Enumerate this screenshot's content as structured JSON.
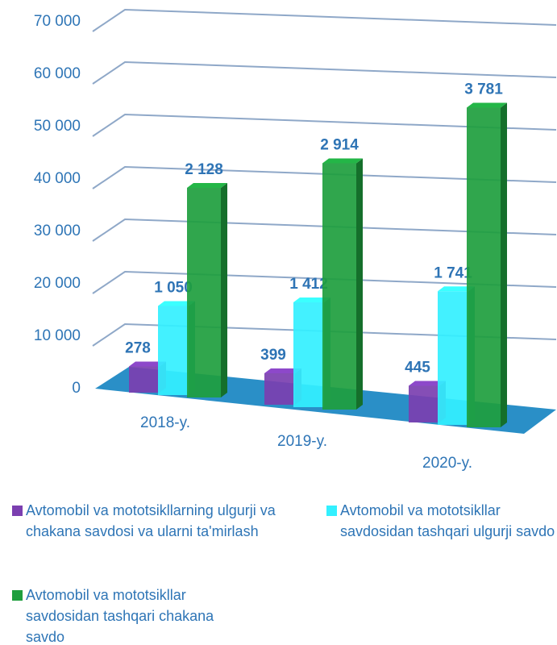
{
  "chart_data": {
    "type": "bar3d",
    "categories": [
      "2018-y.",
      "2019-y.",
      "2020-y."
    ],
    "series": [
      {
        "name": "Avtomobil va mototsikllarning ulgurji va chakana savdosi va ularni ta'mirlash",
        "color": "#7b3fb0",
        "values": [
          5000,
          6000,
          7000
        ],
        "labels": [
          "278",
          "399",
          "445"
        ]
      },
      {
        "name": "Avtomobil va mototsikllar savdosidan tashqari ulgurji savdo",
        "color": "#33f0ff",
        "values": [
          17000,
          20000,
          25500
        ],
        "labels": [
          "1 050",
          "1 412",
          "1 741"
        ]
      },
      {
        "name": "Avtomobil va mototsikllar savdosidan tashqari chakana savdo",
        "color": "#1e9e3e",
        "values": [
          40000,
          47000,
          61000
        ],
        "labels": [
          "2 128",
          "2 914",
          "3 781"
        ]
      }
    ],
    "ylim": [
      0,
      70000
    ],
    "yticks": [
      0,
      {
        "value": 10000,
        "label": "10 000"
      },
      {
        "value": 20000,
        "label": "20 000"
      },
      {
        "value": 30000,
        "label": "30 000"
      },
      {
        "value": 40000,
        "label": "40 000"
      },
      {
        "value": 50000,
        "label": "50 000"
      },
      {
        "value": 60000,
        "label": "60 000"
      },
      {
        "value": 70000,
        "label": "70 000"
      }
    ],
    "grid": true
  }
}
